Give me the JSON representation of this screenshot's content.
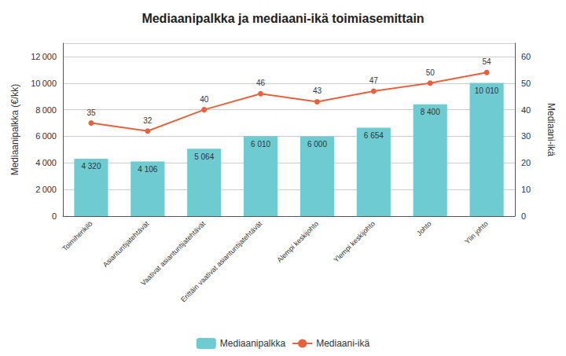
{
  "chart_data": {
    "type": "bar",
    "title": "Mediaanipalkka ja mediaani-ikä toimiasemittain",
    "categories": [
      "Toimihenkilö",
      "Asiantuntijatehtävät",
      "Vaativat asiantuntijatehtävät",
      "Erittäin vaativat asiantuntijatehtävät",
      "Alempi keskijohto",
      "Ylempi keskijohto",
      "Johto",
      "Ylin johto"
    ],
    "series": [
      {
        "name": "Mediaanipalkka",
        "type": "bar",
        "color": "#6ecbd1",
        "values": [
          4320,
          4106,
          5064,
          6010,
          6000,
          6654,
          8400,
          10010
        ],
        "value_labels": [
          "4 320",
          "4 106",
          "5 064",
          "6 010",
          "6 000",
          "6 654",
          "8 400",
          "10 010"
        ]
      },
      {
        "name": "Mediaani-ikä",
        "type": "line",
        "axis": "y2",
        "color": "#e8613c",
        "marker": "circle",
        "values": [
          35,
          32,
          40,
          46,
          43,
          47,
          50,
          54
        ]
      }
    ],
    "ylabel": "Mediaanipalkka (€/kk)",
    "y2label": "Mediaani-ikä",
    "ylim": [
      0,
      13000
    ],
    "yticks": [
      0,
      {
        "value": 2000,
        "label": "2 000"
      },
      {
        "value": 4000,
        "label": "4 000"
      },
      {
        "value": 6000,
        "label": "6 000"
      },
      {
        "value": 8000,
        "label": "8 000"
      },
      {
        "value": 10000,
        "label": "10 000"
      },
      {
        "value": 12000,
        "label": "12 000"
      }
    ],
    "y2lim": [
      0,
      65
    ],
    "y2ticks": [
      0,
      10,
      20,
      30,
      40,
      50,
      60
    ],
    "grid": true,
    "legend": "bottom",
    "data_labels": true
  }
}
